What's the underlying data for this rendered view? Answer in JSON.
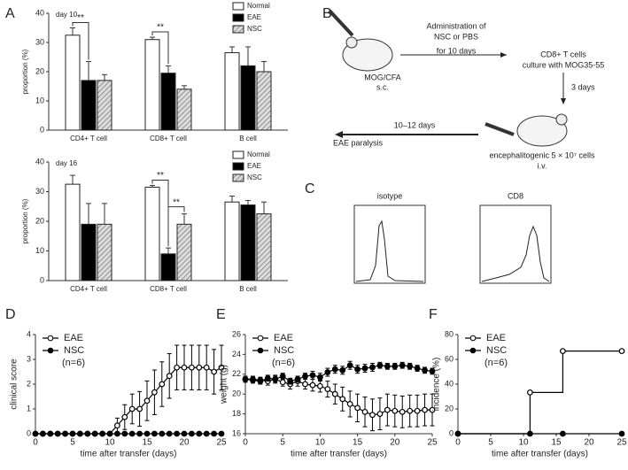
{
  "panel_labels": [
    "A",
    "B",
    "C",
    "D",
    "E",
    "F"
  ],
  "diagram": {
    "immunization": [
      "MOG/CFA",
      "s.c."
    ],
    "admin": [
      "Administration of",
      "NSC or PBS",
      "for 10 days"
    ],
    "culture": [
      "CD8+ T cells",
      "culture with MOG35-55"
    ],
    "culture_time": "3 days",
    "transfer": [
      "encephalitogenic 5 × 10⁷ cells",
      "i.v."
    ],
    "outcome_time": "10–12 days",
    "outcome": "EAE paralysis"
  },
  "histograms": {
    "titles": [
      "isotype",
      "CD8"
    ]
  },
  "chart_data": [
    {
      "type": "bar",
      "label": "day 10",
      "y_label": "proportion (%)",
      "categories": [
        "CD4+ T cell",
        "CD8+ T cell",
        "B cell"
      ],
      "ylim": [
        0,
        40
      ],
      "yticks": [
        0,
        10,
        20,
        30,
        40
      ],
      "grid": false,
      "legend": "top-right",
      "annotations": [
        "**",
        "**"
      ],
      "series": [
        {
          "name": "Normal",
          "color": "#ffffff",
          "values": [
            32.5,
            31,
            26.5
          ],
          "errors": [
            2.5,
            0.8,
            2
          ]
        },
        {
          "name": "EAE",
          "color": "#000000",
          "values": [
            17,
            19.5,
            22
          ],
          "errors": [
            6.5,
            2.5,
            6.5
          ]
        },
        {
          "name": "NSC",
          "color": "#bbbbbb",
          "pattern": "hatched",
          "values": [
            17,
            14,
            20
          ],
          "errors": [
            2,
            1.2,
            3.5
          ]
        }
      ]
    },
    {
      "type": "bar",
      "label": "day 16",
      "y_label": "proportion (%)",
      "categories": [
        "CD4+ T cell",
        "CD8+ T cell",
        "B cell"
      ],
      "ylim": [
        0,
        40
      ],
      "yticks": [
        0,
        10,
        20,
        30,
        40
      ],
      "grid": false,
      "legend": "top-right",
      "annotations": [
        "**",
        "**"
      ],
      "series": [
        {
          "name": "Normal",
          "color": "#ffffff",
          "values": [
            32.5,
            31.5,
            26.5
          ],
          "errors": [
            3,
            0.6,
            2
          ]
        },
        {
          "name": "EAE",
          "color": "#000000",
          "values": [
            19,
            9,
            25.5
          ],
          "errors": [
            7,
            2,
            1.5
          ]
        },
        {
          "name": "NSC",
          "color": "#bbbbbb",
          "pattern": "hatched",
          "values": [
            19,
            19,
            22.5
          ],
          "errors": [
            7,
            3.5,
            4
          ]
        }
      ]
    },
    {
      "type": "line",
      "x_label": "time after transfer (days)",
      "y_label": "clinical score",
      "annotation": "(n=6)",
      "xlim": [
        0,
        25
      ],
      "xticks": [
        0,
        5,
        10,
        15,
        20,
        25
      ],
      "ylim": [
        0,
        4
      ],
      "yticks": [
        0,
        1,
        2,
        3,
        4
      ],
      "grid": false,
      "legend": "top-left",
      "x": [
        0,
        1,
        2,
        3,
        4,
        5,
        6,
        7,
        8,
        9,
        10,
        11,
        12,
        13,
        14,
        15,
        16,
        17,
        18,
        19,
        20,
        21,
        22,
        23,
        24,
        25
      ],
      "series": [
        {
          "name": "EAE",
          "color": "#000000",
          "marker": "open",
          "values": [
            0,
            0,
            0,
            0,
            0,
            0,
            0,
            0,
            0,
            0,
            0,
            0.33,
            0.67,
            1,
            1,
            1.33,
            1.67,
            2,
            2.33,
            2.67,
            2.67,
            2.67,
            2.67,
            2.67,
            2.5,
            2.67
          ],
          "errors": [
            0,
            0,
            0,
            0,
            0,
            0,
            0,
            0,
            0,
            0,
            0,
            0.3,
            0.5,
            0.6,
            0.7,
            0.8,
            0.9,
            0.9,
            0.9,
            0.9,
            0.9,
            0.9,
            0.9,
            0.9,
            0.9,
            0.9
          ]
        },
        {
          "name": "NSC",
          "color": "#000000",
          "marker": "filled",
          "values": [
            0,
            0,
            0,
            0,
            0,
            0,
            0,
            0,
            0,
            0,
            0,
            0,
            0,
            0,
            0,
            0,
            0,
            0,
            0,
            0,
            0,
            0,
            0,
            0,
            0,
            0
          ],
          "errors": [
            0,
            0,
            0,
            0,
            0,
            0,
            0,
            0,
            0,
            0,
            0,
            0,
            0,
            0,
            0,
            0,
            0,
            0,
            0,
            0,
            0,
            0,
            0,
            0,
            0,
            0
          ]
        }
      ]
    },
    {
      "type": "line",
      "x_label": "time after transfer (days)",
      "y_label": "weight (g)",
      "annotation": "(n=6)",
      "xlim": [
        0,
        25
      ],
      "xticks": [
        0,
        5,
        10,
        15,
        20,
        25
      ],
      "ylim": [
        16,
        26
      ],
      "yticks": [
        16,
        18,
        20,
        22,
        24,
        26
      ],
      "grid": false,
      "legend": "top-left",
      "x": [
        0,
        1,
        2,
        3,
        4,
        5,
        6,
        7,
        8,
        9,
        10,
        11,
        12,
        13,
        14,
        15,
        16,
        17,
        18,
        19,
        20,
        21,
        22,
        23,
        24,
        25
      ],
      "series": [
        {
          "name": "EAE",
          "color": "#000000",
          "marker": "open",
          "values": [
            21.5,
            21.5,
            21.4,
            21.3,
            21.5,
            21.2,
            21.0,
            21.3,
            21.0,
            20.9,
            20.8,
            20.5,
            20.0,
            19.5,
            19.0,
            18.6,
            18.2,
            17.9,
            18.0,
            18.4,
            18.3,
            18.2,
            18.3,
            18.3,
            18.4,
            18.4
          ],
          "errors": [
            0.3,
            0.3,
            0.3,
            0.4,
            0.4,
            0.4,
            0.5,
            0.5,
            0.5,
            0.6,
            0.6,
            0.8,
            1.0,
            1.2,
            1.3,
            1.4,
            1.5,
            1.6,
            1.6,
            1.6,
            1.6,
            1.6,
            1.6,
            1.6,
            1.6,
            1.6
          ]
        },
        {
          "name": "NSC",
          "color": "#000000",
          "marker": "filled",
          "values": [
            21.5,
            21.4,
            21.3,
            21.6,
            21.5,
            21.8,
            21.3,
            21.5,
            21.8,
            21.9,
            21.7,
            22.2,
            22.5,
            22.4,
            22.9,
            22.5,
            22.6,
            22.7,
            22.9,
            22.8,
            22.8,
            22.9,
            22.8,
            22.6,
            22.4,
            22.3
          ],
          "errors": [
            0.3,
            0.3,
            0.3,
            0.3,
            0.3,
            0.3,
            0.3,
            0.3,
            0.3,
            0.4,
            0.4,
            0.4,
            0.4,
            0.4,
            0.4,
            0.4,
            0.4,
            0.4,
            0.3,
            0.3,
            0.3,
            0.3,
            0.3,
            0.3,
            0.3,
            0.3
          ]
        }
      ]
    },
    {
      "type": "step",
      "x_label": "time after transfer (days)",
      "y_label": "incidence (%)",
      "annotation": "(n=6)",
      "xlim": [
        0,
        25
      ],
      "xticks": [
        0,
        5,
        10,
        15,
        20,
        25
      ],
      "ylim": [
        0,
        80
      ],
      "yticks": [
        0,
        20,
        40,
        60,
        80
      ],
      "grid": false,
      "legend": "top-left",
      "x": [
        0,
        11,
        16,
        25
      ],
      "series": [
        {
          "name": "EAE",
          "color": "#000000",
          "marker": "open",
          "values": [
            0,
            33.3,
            66.7,
            66.7
          ]
        },
        {
          "name": "NSC",
          "color": "#000000",
          "marker": "filled",
          "values": [
            0,
            0,
            0,
            0
          ]
        }
      ]
    }
  ]
}
